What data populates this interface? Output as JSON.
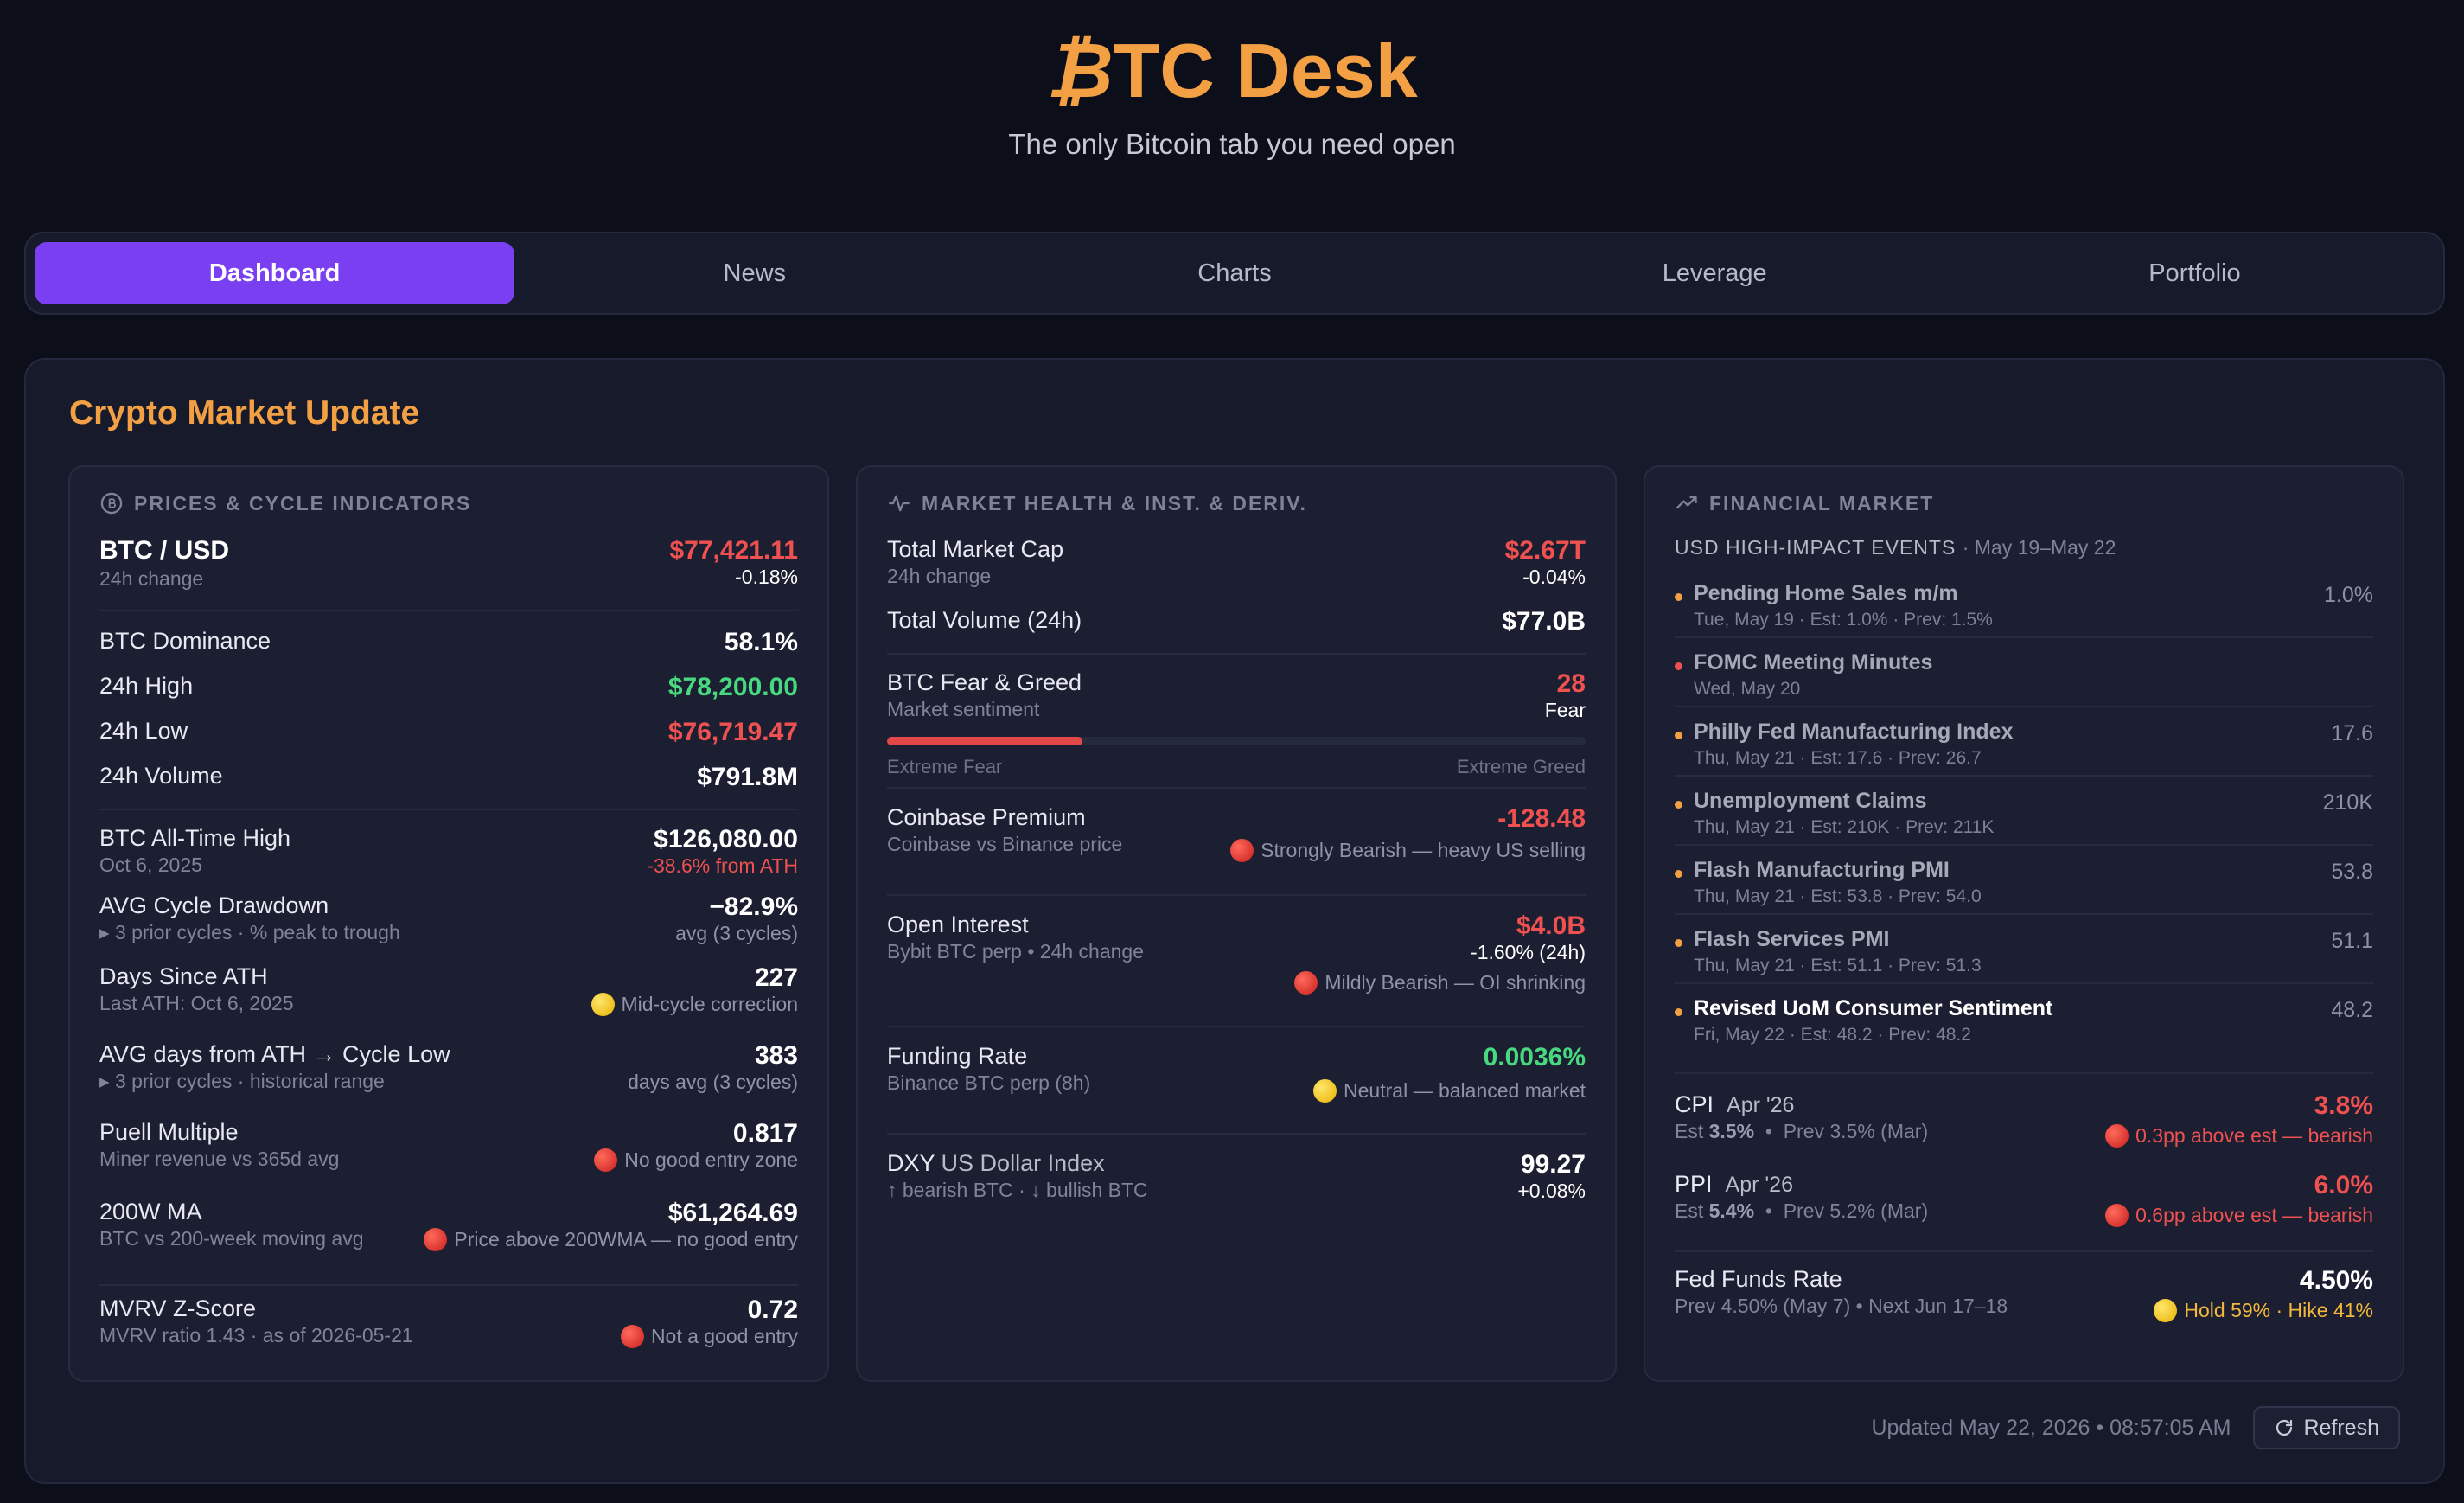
{
  "brand": {
    "title_b": "₿",
    "title_rest": "TC Desk",
    "subtitle": "The only Bitcoin tab you need open"
  },
  "tabs": [
    "Dashboard",
    "News",
    "Charts",
    "Leverage",
    "Portfolio"
  ],
  "board": {
    "title": "Crypto Market Update"
  },
  "prices": {
    "header": "PRICES & CYCLE INDICATORS",
    "pair": "BTC / USD",
    "pair_sub": "24h change",
    "price": "$77,421.11",
    "change": "-0.18%",
    "dominance_label": "BTC Dominance",
    "dominance": "58.1%",
    "high_label": "24h High",
    "high": "$78,200.00",
    "low_label": "24h Low",
    "low": "$76,719.47",
    "volume_label": "24h Volume",
    "volume": "$791.8M",
    "ath_label": "BTC All-Time High",
    "ath_date": "Oct 6, 2025",
    "ath": "$126,080.00",
    "ath_diff": "-38.6% from ATH",
    "drawdown_label": "AVG Cycle Drawdown",
    "drawdown_sub": "3 prior cycles · % peak to trough",
    "drawdown": "−82.9%",
    "drawdown_note": "avg (3 cycles)",
    "days_label": "Days Since ATH",
    "days_sub": "Last ATH: Oct 6, 2025",
    "days": "227",
    "days_note": "Mid-cycle correction",
    "low_days_label": "AVG days from ATH → Cycle Low",
    "low_days_sub": "3 prior cycles · historical range",
    "low_days": "383",
    "low_days_note": "days avg (3 cycles)",
    "puell_label": "Puell Multiple",
    "puell_sub": "Miner revenue vs 365d avg",
    "puell": "0.817",
    "puell_note": "No good entry zone",
    "ma_label": "200W MA",
    "ma_sub": "BTC vs 200-week moving avg",
    "ma": "$61,264.69",
    "ma_note": "Price above 200WMA — no good entry",
    "mvrv_label": "MVRV Z-Score",
    "mvrv_sub": "MVRV ratio 1.43 · as of 2026-05-21",
    "mvrv": "0.72",
    "mvrv_note": "Not a good entry"
  },
  "health": {
    "header": "MARKET HEALTH & INST. & DERIV.",
    "mcap_label": "Total Market Cap",
    "mcap_sub": "24h change",
    "mcap": "$2.67T",
    "mcap_change": "-0.04%",
    "vol_label": "Total Volume (24h)",
    "vol": "$77.0B",
    "fg_label": "BTC Fear & Greed",
    "fg_sub": "Market sentiment",
    "fg_value": "28",
    "fg_text": "Fear",
    "fg_level": 28,
    "fg_min": "Extreme Fear",
    "fg_max": "Extreme Greed",
    "cb_label": "Coinbase Premium",
    "cb_sub": "Coinbase vs Binance price",
    "cb": "-128.48",
    "cb_note": "Strongly Bearish — heavy US selling",
    "oi_label": "Open Interest",
    "oi_sub": "Bybit BTC perp • 24h change",
    "oi": "$4.0B",
    "oi_change": "-1.60% (24h)",
    "oi_note": "Mildly Bearish — OI shrinking",
    "fund_label": "Funding Rate",
    "fund_sub": "Binance BTC perp (8h)",
    "fund": "0.0036%",
    "fund_note": "Neutral — balanced market",
    "dxy_label": "DXY",
    "dxy_label2": "US Dollar Index",
    "dxy_sub": "↑ bearish BTC  ·  ↓ bullish BTC",
    "dxy": "99.27",
    "dxy_change": "+0.08%"
  },
  "financial": {
    "header": "FINANCIAL MARKET",
    "events_head": "USD HIGH-IMPACT EVENTS",
    "events_range": "· May 19–May 22",
    "events": [
      {
        "title": "Pending Home Sales m/m",
        "meta": "Tue, May 19 · Est: 1.0% · Prev: 1.5%",
        "value": "1.0%"
      },
      {
        "title": "FOMC Meeting Minutes",
        "meta": "Wed, May 20",
        "value": ""
      },
      {
        "title": "Philly Fed Manufacturing Index",
        "meta": "Thu, May 21 · Est: 17.6 · Prev: 26.7",
        "value": "17.6"
      },
      {
        "title": "Unemployment Claims",
        "meta": "Thu, May 21 · Est: 210K · Prev: 211K",
        "value": "210K"
      },
      {
        "title": "Flash Manufacturing PMI",
        "meta": "Thu, May 21 · Est: 53.8 · Prev: 54.0",
        "value": "53.8"
      },
      {
        "title": "Flash Services PMI",
        "meta": "Thu, May 21 · Est: 51.1 · Prev: 51.3",
        "value": "51.1"
      },
      {
        "title": "Revised UoM Consumer Sentiment",
        "meta": "Fri, May 22 · Est: 48.2 · Prev: 48.2",
        "value": "48.2"
      }
    ],
    "cpi_label": "CPI",
    "cpi_period": "Apr '26",
    "cpi_est_label": "Est",
    "cpi_est": "3.5%",
    "cpi_prev": "Prev 3.5% (Mar)",
    "cpi": "3.8%",
    "cpi_note": "0.3pp above est — bearish",
    "ppi_label": "PPI",
    "ppi_period": "Apr '26",
    "ppi_est_label": "Est",
    "ppi_est": "5.4%",
    "ppi_prev": "Prev 5.2% (Mar)",
    "ppi": "6.0%",
    "ppi_note": "0.6pp above est — bearish",
    "ffr_label": "Fed Funds Rate",
    "ffr_sub": "Prev 4.50% (May 7)  •  Next Jun 17–18",
    "ffr": "4.50%",
    "ffr_note": "Hold 59% · Hike 41%"
  },
  "footer": {
    "updated": "Updated May 22, 2026 • 08:57:05 AM",
    "refresh": "Refresh"
  }
}
